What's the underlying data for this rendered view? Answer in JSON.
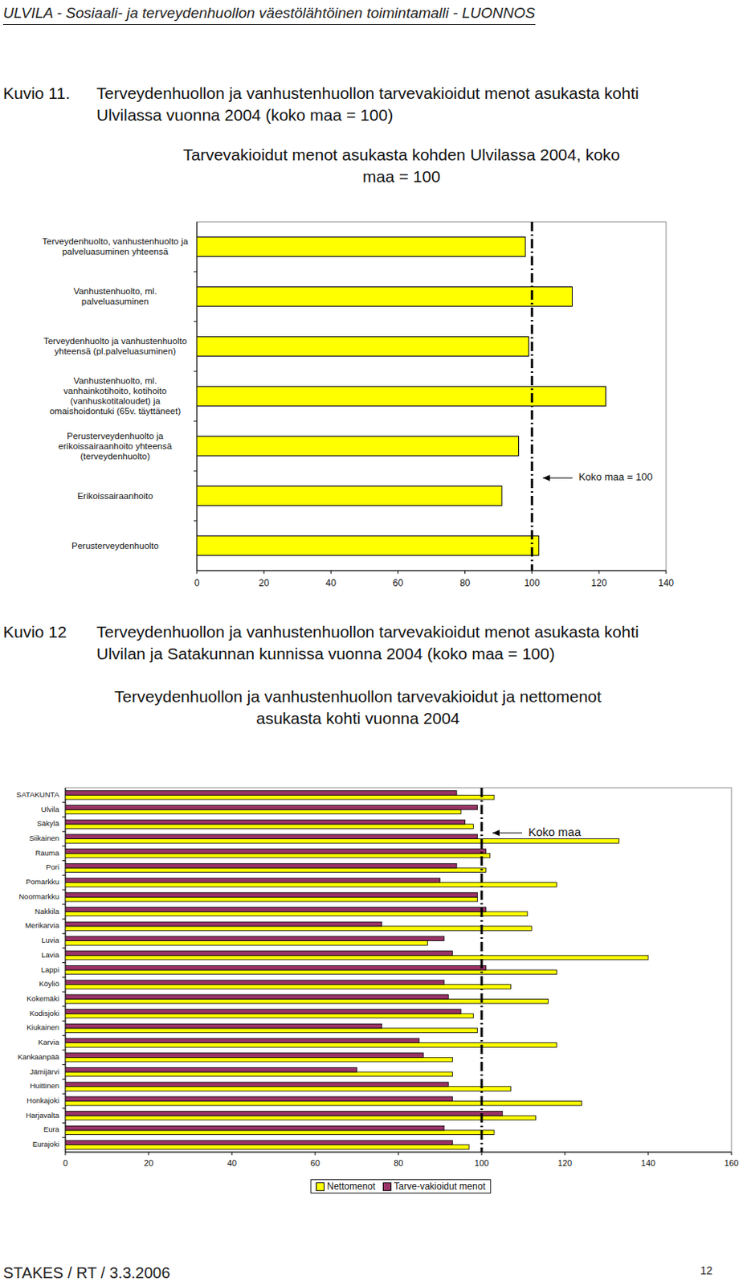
{
  "header": "ULVILA - Sosiaali- ja terveydenhuollon väestölähtöinen toimintamalli - LUONNOS",
  "captions": [
    {
      "label": "Kuvio 11.",
      "text": "Terveydenhuollon ja vanhustenhuollon tarvevakioidut menot asukasta kohti Ulvilassa vuonna 2004 (koko maa = 100)"
    },
    {
      "label": "Kuvio 12",
      "text": "Terveydenhuollon ja vanhustenhuollon tarvevakioidut menot asukasta kohti Ulvilan ja Satakunnan kunnissa vuonna 2004 (koko maa = 100)"
    }
  ],
  "chart_data": [
    {
      "type": "bar",
      "orientation": "horizontal",
      "title": "Tarvevakioidut menot asukasta kohden Ulvilassa 2004, koko maa = 100",
      "categories": [
        "Terveydenhuolto, vanhustenhuolto ja palveluasuminen yhteensä",
        "Vanhustenhuolto, ml. palveluasuminen",
        "Terveydenhuolto ja vanhustenhuolto yhteensä (pl.palveluasuminen)",
        "Vanhustenhuolto, ml. vanhainkotihoito, kotihoito (vanhuskotitaloudet) ja omaishoidontuki (65v. täyttäneet)",
        "Perusterveydenhuolto ja erikoissairaanhoito yhteensä (terveydenhuolto)",
        "Erikoissairaanhoito",
        "Perusterveydenhuolto"
      ],
      "values": [
        98,
        112,
        99,
        122,
        96,
        91,
        102
      ],
      "color": "#ffff00",
      "xlim": [
        0,
        140
      ],
      "xticks": [
        0,
        20,
        40,
        60,
        80,
        100,
        120,
        140
      ],
      "grid": false,
      "annotations": [
        {
          "text": "Koko maa = 100",
          "value": 100
        }
      ]
    },
    {
      "type": "bar",
      "orientation": "horizontal",
      "title": "Terveydenhuollon ja vanhustenhuollon tarvevakioidut ja nettomenot asukasta kohti vuonna 2004",
      "categories": [
        "SATAKUNTA",
        "Ulvila",
        "Säkylä",
        "Siikainen",
        "Rauma",
        "Pori",
        "Pomarkku",
        "Noormarkku",
        "Nakkila",
        "Merikarvia",
        "Luvia",
        "Lavia",
        "Lappi",
        "Köyliö",
        "Kokemäki",
        "Kodisjoki",
        "Kiukainen",
        "Karvia",
        "Kankaanpää",
        "Jämijärvi",
        "Huittinen",
        "Honkajoki",
        "Harjavalta",
        "Eura",
        "Eurajoki"
      ],
      "series": [
        {
          "name": "Nettomenot",
          "color": "#ffff00",
          "values": [
            103,
            95,
            98,
            133,
            102,
            101,
            118,
            99,
            111,
            112,
            87,
            140,
            118,
            107,
            116,
            98,
            99,
            118,
            93,
            93,
            107,
            124,
            113,
            103,
            97
          ]
        },
        {
          "name": "Tarve-vakioidut menot",
          "color": "#993366",
          "values": [
            94,
            99,
            96,
            99,
            101,
            94,
            90,
            99,
            101,
            76,
            91,
            93,
            101,
            91,
            92,
            95,
            76,
            85,
            86,
            70,
            92,
            93,
            105,
            91,
            93
          ]
        }
      ],
      "xlim": [
        0,
        160
      ],
      "xticks": [
        0,
        20,
        40,
        60,
        80,
        100,
        120,
        140,
        160
      ],
      "grid": false,
      "legend": "bottom",
      "annotations": [
        {
          "text": "Koko maa",
          "value": 100
        }
      ]
    }
  ],
  "footer": {
    "left": "STAKES / RT / 3.3.2006",
    "page": "12"
  }
}
